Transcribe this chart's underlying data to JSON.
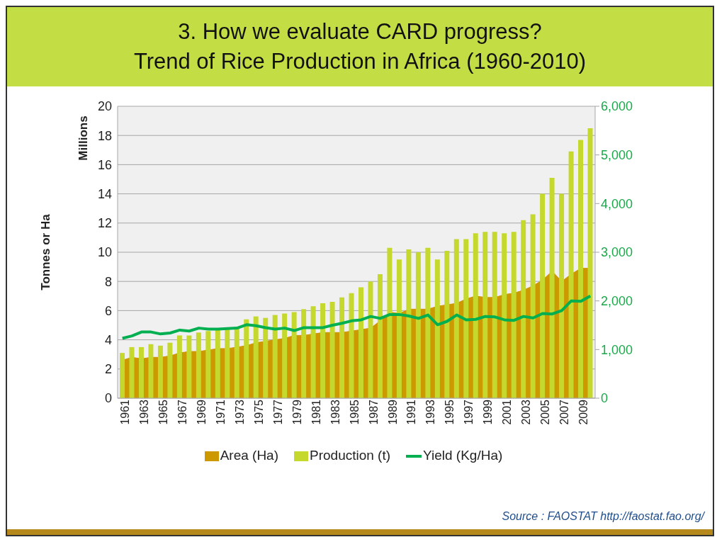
{
  "chart_data": {
    "type": "bar",
    "title": "3. How we evaluate CARD progress?\nTrend of Rice Production in Africa (1960-2010)",
    "ylabel": "Tonnes or Ha",
    "annotations": [
      "Millions",
      "Source : FAOSTAT http://faostat.fao.org/"
    ],
    "categories": [
      "1961",
      null,
      "1963",
      null,
      "1965",
      null,
      "1967",
      null,
      "1969",
      null,
      "1971",
      null,
      "1973",
      null,
      "1975",
      null,
      "1977",
      null,
      "1979",
      null,
      "1981",
      null,
      "1983",
      null,
      "1985",
      null,
      "1987",
      null,
      "1989",
      null,
      "1991",
      null,
      "1993",
      null,
      "1995",
      null,
      "1997",
      null,
      "1999",
      null,
      "2001",
      null,
      "2003",
      null,
      "2005",
      null,
      "2007",
      null,
      "2009",
      null
    ],
    "series": [
      {
        "name": "Area (Ha)",
        "type": "area",
        "color": "#cc9900",
        "values": [
          2.6,
          2.8,
          2.7,
          2.8,
          2.8,
          2.9,
          3.1,
          3.2,
          3.2,
          3.3,
          3.4,
          3.4,
          3.5,
          3.6,
          3.8,
          3.9,
          4.0,
          4.1,
          4.3,
          4.3,
          4.4,
          4.5,
          4.5,
          4.5,
          4.6,
          4.7,
          4.8,
          5.3,
          5.9,
          5.8,
          6.1,
          6.1,
          6.1,
          6.3,
          6.4,
          6.5,
          6.8,
          7.0,
          6.9,
          6.9,
          7.1,
          7.2,
          7.4,
          7.7,
          8.1,
          8.7,
          8.0,
          8.5,
          8.9,
          8.9
        ]
      },
      {
        "name": "Production (t)",
        "type": "bar",
        "color": "#c5d82e",
        "values": [
          3.1,
          3.5,
          3.5,
          3.7,
          3.6,
          3.8,
          4.3,
          4.3,
          4.5,
          4.6,
          4.8,
          4.8,
          4.8,
          5.4,
          5.6,
          5.5,
          5.7,
          5.8,
          5.9,
          6.1,
          6.3,
          6.5,
          6.6,
          6.9,
          7.2,
          7.6,
          8.0,
          8.5,
          10.3,
          9.5,
          10.2,
          10.0,
          10.3,
          9.5,
          10.1,
          10.9,
          10.9,
          11.3,
          11.4,
          11.4,
          11.3,
          11.4,
          12.2,
          12.6,
          14.0,
          15.1,
          14.0,
          16.9,
          17.7,
          18.5
        ]
      },
      {
        "name": "Yield (Kg/Ha)",
        "type": "line",
        "axis": "y2",
        "color": "#00b050",
        "values": [
          1230,
          1280,
          1360,
          1360,
          1320,
          1340,
          1400,
          1380,
          1440,
          1420,
          1420,
          1430,
          1440,
          1510,
          1490,
          1450,
          1420,
          1440,
          1390,
          1450,
          1450,
          1450,
          1500,
          1540,
          1590,
          1610,
          1680,
          1640,
          1720,
          1720,
          1690,
          1640,
          1710,
          1510,
          1580,
          1710,
          1610,
          1620,
          1680,
          1670,
          1610,
          1600,
          1680,
          1650,
          1740,
          1730,
          1800,
          2000,
          1990,
          2100
        ]
      }
    ],
    "ylim": [
      0,
      20
    ],
    "yticks": [
      0,
      2,
      4,
      6,
      8,
      10,
      12,
      14,
      16,
      18,
      20
    ],
    "y2lim": [
      0,
      6000
    ],
    "y2ticks": [
      0,
      {
        "value": 1000,
        "label": "1,000"
      },
      {
        "value": 2000,
        "label": "2,000"
      },
      {
        "value": 3000,
        "label": "3,000"
      },
      {
        "value": 4000,
        "label": "4,000"
      },
      {
        "value": 5000,
        "label": "5,000"
      },
      {
        "value": 6000,
        "label": "6,000"
      }
    ],
    "grid": "y",
    "legend": "bottom",
    "marker": "none"
  }
}
